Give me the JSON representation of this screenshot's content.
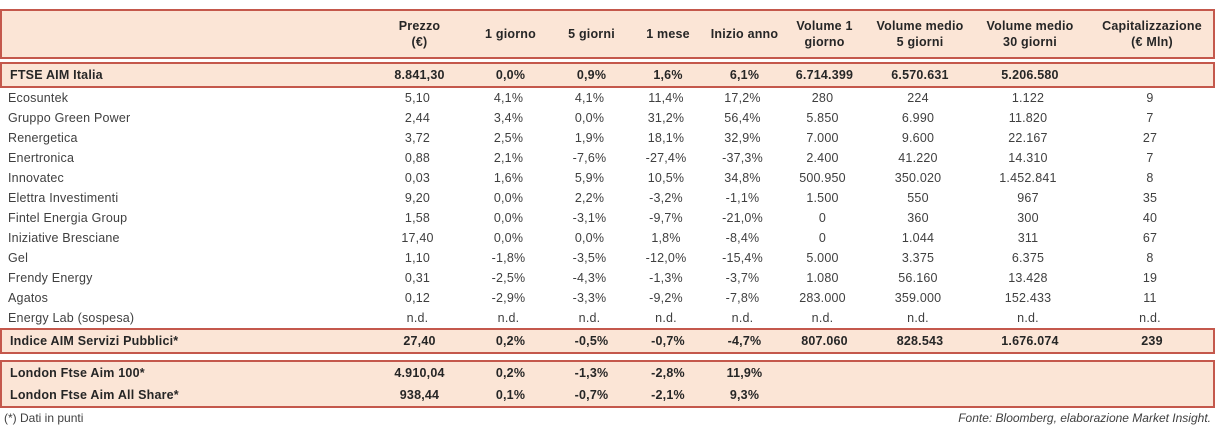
{
  "colors": {
    "band_background": "#FBE5D6",
    "rule_red": "#C4584C",
    "text": "#3F3F3F"
  },
  "table": {
    "column_keys": [
      "name",
      "prezzo",
      "1-giorno",
      "5-giorni",
      "1-mese",
      "inizio-anno",
      "volume-1-giorno",
      "volume-medio-5-giorni",
      "volume-medio-30-giorni",
      "capitalizzazione"
    ],
    "header_cells": [
      "",
      "Prezzo\n(€)",
      "1 giorno",
      "5 giorni",
      "1 mese",
      "Inizio anno",
      "Volume 1\ngiorno",
      "Volume medio\n5 giorni",
      "Volume medio\n30 giorni",
      "Capitalizzazione\n(€ Mln)"
    ],
    "ftse_row": {
      "name": "FTSE AIM Italia",
      "values": [
        "8.841,30",
        "0,0%",
        "0,9%",
        "1,6%",
        "6,1%",
        "6.714.399",
        "6.570.631",
        "5.206.580",
        ""
      ]
    },
    "companies": [
      {
        "name": "Ecosuntek",
        "values": [
          "5,10",
          "4,1%",
          "4,1%",
          "11,4%",
          "17,2%",
          "280",
          "224",
          "1.122",
          "9"
        ]
      },
      {
        "name": "Gruppo Green Power",
        "values": [
          "2,44",
          "3,4%",
          "0,0%",
          "31,2%",
          "56,4%",
          "5.850",
          "6.990",
          "11.820",
          "7"
        ]
      },
      {
        "name": "Renergetica",
        "values": [
          "3,72",
          "2,5%",
          "1,9%",
          "18,1%",
          "32,9%",
          "7.000",
          "9.600",
          "22.167",
          "27"
        ]
      },
      {
        "name": "Enertronica",
        "values": [
          "0,88",
          "2,1%",
          "-7,6%",
          "-27,4%",
          "-37,3%",
          "2.400",
          "41.220",
          "14.310",
          "7"
        ]
      },
      {
        "name": "Innovatec",
        "values": [
          "0,03",
          "1,6%",
          "5,9%",
          "10,5%",
          "34,8%",
          "500.950",
          "350.020",
          "1.452.841",
          "8"
        ]
      },
      {
        "name": "Elettra Investimenti",
        "values": [
          "9,20",
          "0,0%",
          "2,2%",
          "-3,2%",
          "-1,1%",
          "1.500",
          "550",
          "967",
          "35"
        ]
      },
      {
        "name": "Fintel Energia Group",
        "values": [
          "1,58",
          "0,0%",
          "-3,1%",
          "-9,7%",
          "-21,0%",
          "0",
          "360",
          "300",
          "40"
        ]
      },
      {
        "name": "Iniziative Bresciane",
        "values": [
          "17,40",
          "0,0%",
          "0,0%",
          "1,8%",
          "-8,4%",
          "0",
          "1.044",
          "311",
          "67"
        ]
      },
      {
        "name": "Gel",
        "values": [
          "1,10",
          "-1,8%",
          "-3,5%",
          "-12,0%",
          "-15,4%",
          "5.000",
          "3.375",
          "6.375",
          "8"
        ]
      },
      {
        "name": "Frendy Energy",
        "values": [
          "0,31",
          "-2,5%",
          "-4,3%",
          "-1,3%",
          "-3,7%",
          "1.080",
          "56.160",
          "13.428",
          "19"
        ]
      },
      {
        "name": "Agatos",
        "values": [
          "0,12",
          "-2,9%",
          "-3,3%",
          "-9,2%",
          "-7,8%",
          "283.000",
          "359.000",
          "152.433",
          "11"
        ]
      },
      {
        "name": "Energy Lab (sospesa)",
        "values": [
          "n.d.",
          "n.d.",
          "n.d.",
          "n.d.",
          "n.d.",
          "n.d.",
          "n.d.",
          "n.d.",
          "n.d."
        ]
      }
    ],
    "indice_row": {
      "name": "Indice AIM Servizi Pubblici*",
      "values": [
        "27,40",
        "0,2%",
        "-0,5%",
        "-0,7%",
        "-4,7%",
        "807.060",
        "828.543",
        "1.676.074",
        "239"
      ]
    },
    "london_rows": [
      {
        "name": "London Ftse Aim 100*",
        "values": [
          "4.910,04",
          "0,2%",
          "-1,3%",
          "-2,8%",
          "11,9%",
          "",
          "",
          "",
          ""
        ]
      },
      {
        "name": "London Ftse Aim All Share*",
        "values": [
          "938,44",
          "0,1%",
          "-0,7%",
          "-2,1%",
          "9,3%",
          "",
          "",
          "",
          ""
        ]
      }
    ]
  },
  "footer": {
    "note_left": "(*) Dati in punti",
    "source_right": "Fonte: Bloomberg, elaborazione Market Insight."
  }
}
